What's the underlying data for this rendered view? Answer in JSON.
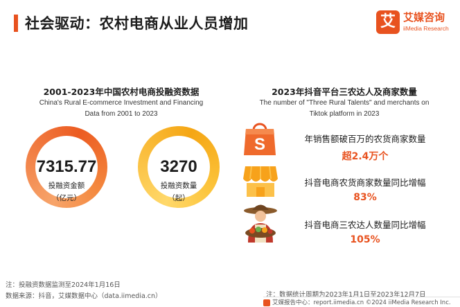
{
  "page": {
    "title": "社会驱动：农村电商从业人员增加"
  },
  "brand": {
    "logo_mark": "艾",
    "name": "艾媒咨询",
    "sub": "iiMedia Research",
    "accent_color": "#e8521f"
  },
  "left_panel": {
    "title": "2001-2023年中国农村电商投融资数据",
    "subtitle_line1": "China's Rural E-commerce Investment and Financing",
    "subtitle_line2": "Data from 2001 to 2023",
    "metrics": [
      {
        "value": "7315.77",
        "label": "投融资金额",
        "unit": "（亿元）",
        "ring_color": "#ec5c22"
      },
      {
        "value": "3270",
        "label": "投融资数量",
        "unit": "（起）",
        "ring_color": "#f5a614"
      }
    ]
  },
  "right_panel": {
    "title": "2023年抖音平台三农达人及商家数量",
    "subtitle_line1": "The number of \"Three Rural Talents\" and merchants on",
    "subtitle_line2": "Tiktok platform in 2023",
    "stats": [
      {
        "label": "年销售额破百万的农货商家数量",
        "value": "超2.4万个",
        "icon": "shopping-bag-icon"
      },
      {
        "label": "抖音电商农货商家数量同比增幅",
        "value": "83%",
        "icon": "storefront-icon"
      },
      {
        "label": "抖音电商三农达人数量同比增幅",
        "value": "105%",
        "icon": "farmer-icon"
      }
    ]
  },
  "notes": {
    "left_1": "注：投融资数据监测至2024年1月16日",
    "left_2": "数据来源：抖音，艾媒数据中心（data.iimedia.cn）",
    "right_1": "注：数据统计周期为2023年1月1日至2023年12月7日"
  },
  "footer": {
    "text": "艾媒报告中心：report.iimedia.cn  ©2024  iiMedia Research Inc."
  }
}
